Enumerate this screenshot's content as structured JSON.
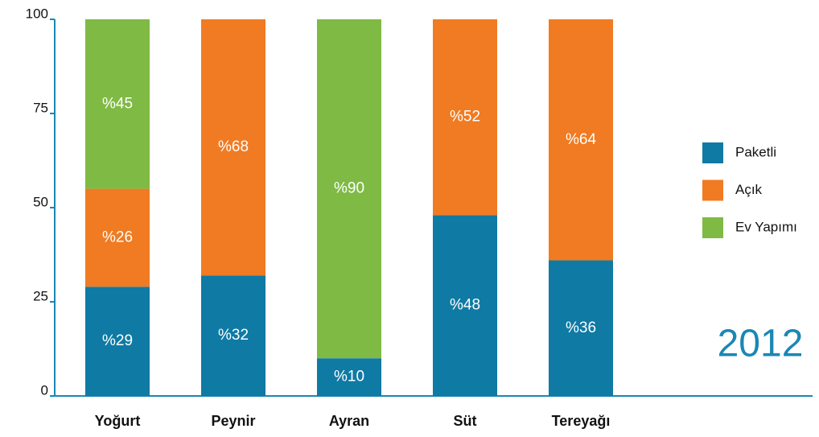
{
  "chart_data": {
    "type": "bar",
    "stacked": true,
    "title": "2012",
    "categories": [
      "Yoğurt",
      "Peynir",
      "Ayran",
      "Süt",
      "Tereyağı"
    ],
    "series": [
      {
        "name": "Paketli",
        "color": "#0f7aa4",
        "values": [
          29,
          32,
          10,
          48,
          36
        ],
        "value_labels": [
          "%29",
          "%32",
          "%10",
          "%48",
          "%36"
        ]
      },
      {
        "name": "Açık",
        "color": "#f07b22",
        "values": [
          26,
          68,
          0,
          52,
          64
        ],
        "value_labels": [
          "%26",
          "%68",
          null,
          "%52",
          "%64"
        ]
      },
      {
        "name": "Ev Yapımı",
        "color": "#7fba44",
        "values": [
          45,
          0,
          90,
          0,
          0
        ],
        "value_labels": [
          "%45",
          null,
          "%90",
          null,
          null
        ]
      }
    ],
    "ylim": [
      0,
      100
    ],
    "yticks": [
      0,
      25,
      50,
      75,
      100
    ],
    "legend": "right"
  }
}
